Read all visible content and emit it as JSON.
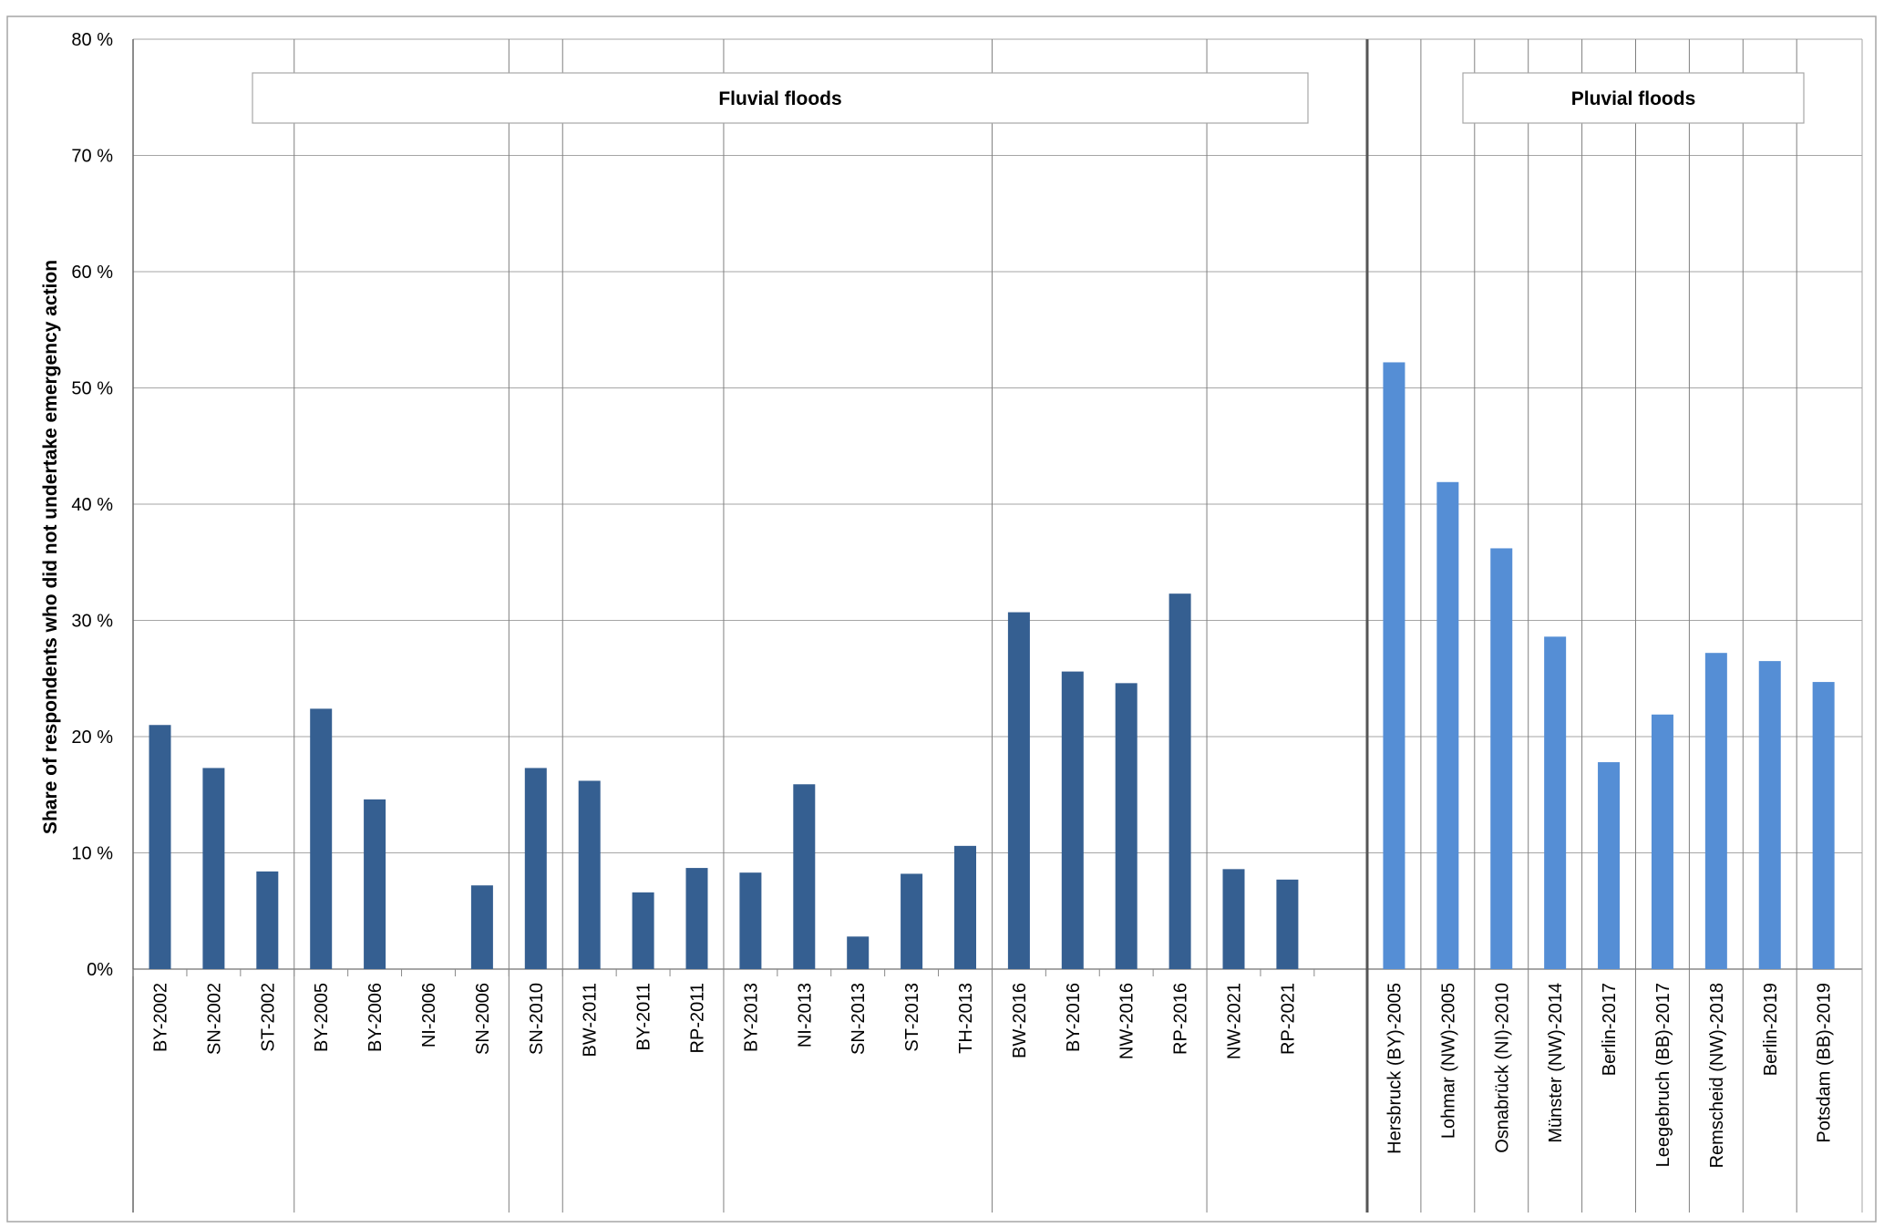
{
  "chart_data": {
    "type": "bar",
    "ylabel": "Share of respondents who did not undertake emergency action",
    "ylim": [
      0,
      80
    ],
    "yticks": [
      "0%",
      "10 %",
      "20 %",
      "30 %",
      "40 %",
      "50 %",
      "60 %",
      "70 %",
      "80 %"
    ],
    "grid": true,
    "groups": [
      {
        "label": "Fluvial floods",
        "color": "#355f91",
        "categories": [
          "BY-2002",
          "SN-2002",
          "ST-2002",
          "BY-2005",
          "BY-2006",
          "NI-2006",
          "SN-2006",
          "SN-2010",
          "BW-2011",
          "BY-2011",
          "RP-2011",
          "BY-2013",
          "NI-2013",
          "SN-2013",
          "ST-2013",
          "TH-2013",
          "BW-2016",
          "BY-2016",
          "NW-2016",
          "RP-2016",
          "NW-2021",
          "RP-2021"
        ],
        "values": [
          21.0,
          17.3,
          8.4,
          22.4,
          14.6,
          0,
          7.2,
          17.3,
          16.2,
          6.6,
          8.7,
          8.3,
          15.9,
          2.8,
          8.2,
          10.6,
          30.7,
          25.6,
          24.6,
          32.3,
          8.6,
          7.7
        ]
      },
      {
        "label": "Pluvial floods",
        "color": "#558ed5",
        "categories": [
          "Hersbruck (BY)-2005",
          "Lohmar (NW)-2005",
          "Osnabrück (NI)-2010",
          "Münster (NW)-2014",
          "Berlin-2017",
          "Leegebruch (BB)-2017",
          "Remscheid (NW)-2018",
          "Berlin-2019",
          "Potsdam (BB)-2019"
        ],
        "values": [
          52.2,
          41.9,
          36.2,
          28.6,
          17.8,
          21.9,
          27.2,
          26.5,
          24.7
        ]
      }
    ]
  }
}
